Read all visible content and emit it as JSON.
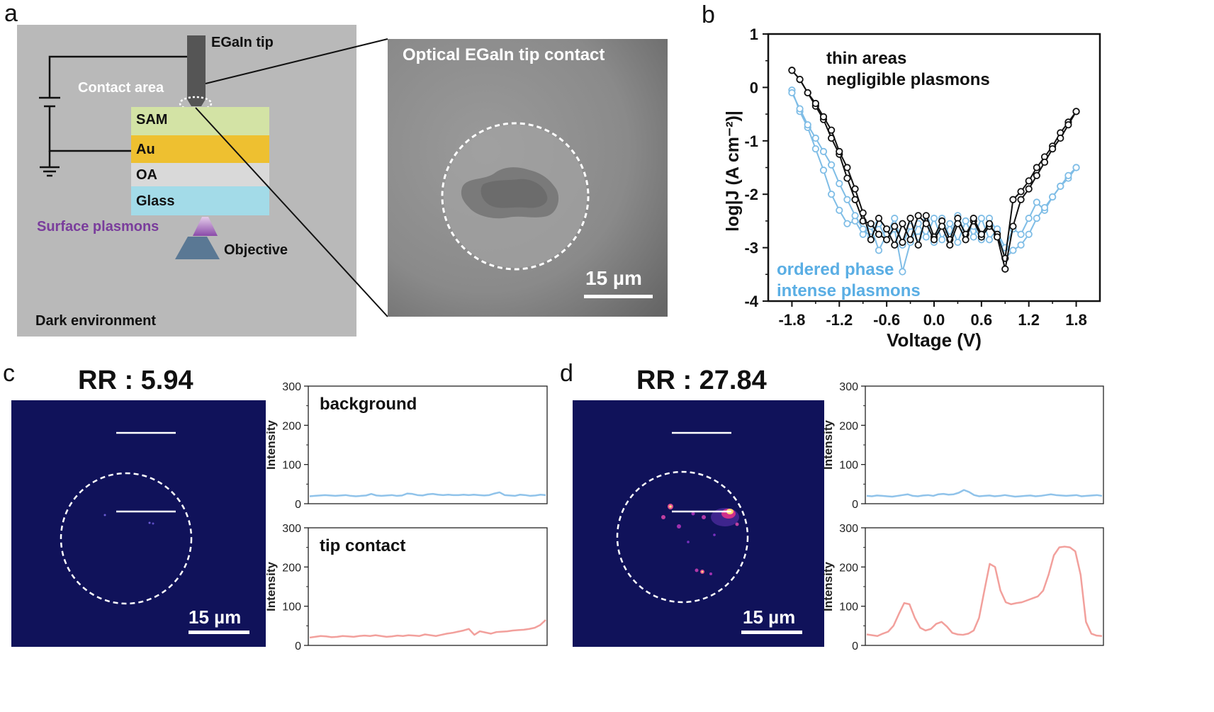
{
  "panel_labels": {
    "a": "a",
    "b": "b",
    "c": "c",
    "d": "d"
  },
  "schematic": {
    "tip_label": "EGaIn tip",
    "contact_label": "Contact area",
    "layers": [
      {
        "name": "SAM",
        "color": "#d3e3a5"
      },
      {
        "name": "Au",
        "color": "#eec030"
      },
      {
        "name": "OA",
        "color": "#d9d9d9"
      },
      {
        "name": "Glass",
        "color": "#a3dbe8"
      }
    ],
    "plasmon_label": "Surface plasmons",
    "objective_label": "Objective",
    "env_label": "Dark environment",
    "colors": {
      "bg": "#b9b9b9",
      "plasmon": "#7a3d9c",
      "tip": "#555555",
      "objective": "#5a7894"
    }
  },
  "optical": {
    "title": "Optical EGaIn tip contact",
    "scalebar": "15 µm"
  },
  "panel_c": {
    "rr": "RR : 5.94",
    "scalebar": "15 µm"
  },
  "panel_d": {
    "rr": "RR : 27.84",
    "scalebar": "15 µm"
  },
  "chart_data": [
    {
      "id": "b",
      "type": "line",
      "xlabel": "Voltage (V)",
      "ylabel": "log|J (A cm⁻²)|",
      "xlim": [
        -2.1,
        2.1
      ],
      "ylim": [
        -4,
        1
      ],
      "xticks": [
        "-1.8",
        "-1.2",
        "-0.6",
        "0.0",
        "0.6",
        "1.2",
        "1.8"
      ],
      "yticks": [
        "1",
        "0",
        "-1",
        "-2",
        "-3",
        "-4"
      ],
      "annotations": [
        {
          "text": "thin areas",
          "color": "#111111"
        },
        {
          "text": "negligible plasmons",
          "color": "#111111"
        },
        {
          "text": "ordered phase",
          "color": "#5aaee4"
        },
        {
          "text": "intense plasmons",
          "color": "#5aaee4"
        }
      ],
      "series": [
        {
          "color": "#111111",
          "sweeps": [
            {
              "x": [
                -1.8,
                -1.7,
                -1.6,
                -1.5,
                -1.4,
                -1.3,
                -1.2,
                -1.1,
                -1.0,
                -0.9,
                -0.8,
                -0.7,
                -0.6,
                -0.5,
                -0.4,
                -0.3,
                -0.2,
                -0.1,
                0.0,
                0.1,
                0.2,
                0.3,
                0.4,
                0.5,
                0.6,
                0.7,
                0.8,
                0.9,
                1.0,
                1.1,
                1.2,
                1.3,
                1.4,
                1.5,
                1.6,
                1.7,
                1.8
              ],
              "y": [
                0.32,
                0.15,
                -0.1,
                -0.35,
                -0.6,
                -0.95,
                -1.25,
                -1.7,
                -2.1,
                -2.5,
                -2.55,
                -2.75,
                -2.85,
                -2.6,
                -2.9,
                -2.45,
                -2.95,
                -2.4,
                -2.8,
                -2.5,
                -2.85,
                -2.45,
                -2.75,
                -2.5,
                -2.8,
                -2.6,
                -2.75,
                -3.2,
                -2.1,
                -1.95,
                -1.75,
                -1.5,
                -1.3,
                -1.1,
                -0.85,
                -0.65,
                -0.45
              ]
            },
            {
              "x": [
                1.8,
                1.7,
                1.6,
                1.5,
                1.4,
                1.3,
                1.2,
                1.1,
                1.0,
                0.9,
                0.8,
                0.7,
                0.6,
                0.5,
                0.4,
                0.3,
                0.2,
                0.1,
                0.0,
                -0.1,
                -0.2,
                -0.3,
                -0.4,
                -0.5,
                -0.6,
                -0.7,
                -0.8,
                -0.9,
                -1.0,
                -1.1,
                -1.2,
                -1.3,
                -1.4,
                -1.5,
                -1.6,
                -1.7,
                -1.8
              ],
              "y": [
                -0.45,
                -0.7,
                -0.95,
                -1.15,
                -1.4,
                -1.65,
                -1.9,
                -2.1,
                -2.6,
                -3.4,
                -2.8,
                -2.55,
                -2.75,
                -2.45,
                -2.85,
                -2.55,
                -2.95,
                -2.6,
                -2.85,
                -2.55,
                -2.4,
                -2.85,
                -2.55,
                -2.95,
                -2.65,
                -2.45,
                -2.85,
                -2.35,
                -1.9,
                -1.5,
                -1.2,
                -0.8,
                -0.55,
                -0.3,
                -0.1,
                0.15,
                0.32
              ]
            }
          ]
        },
        {
          "color": "#7fbde6",
          "sweeps": [
            {
              "x": [
                -1.8,
                -1.7,
                -1.6,
                -1.5,
                -1.4,
                -1.3,
                -1.2,
                -1.1,
                -1.0,
                -0.9,
                -0.8,
                -0.7,
                -0.6,
                -0.5,
                -0.4,
                -0.3,
                -0.2,
                -0.1,
                0.0,
                0.1,
                0.2,
                0.3,
                0.4,
                0.5,
                0.6,
                0.7,
                0.8,
                0.9,
                1.0,
                1.1,
                1.2,
                1.3,
                1.4,
                1.5,
                1.6,
                1.7,
                1.8
              ],
              "y": [
                -0.05,
                -0.45,
                -0.75,
                -1.15,
                -1.55,
                -2.0,
                -2.3,
                -2.55,
                -2.5,
                -2.75,
                -2.6,
                -3.05,
                -2.75,
                -2.45,
                -2.95,
                -2.6,
                -2.8,
                -2.5,
                -2.9,
                -2.45,
                -2.8,
                -2.4,
                -2.75,
                -2.6,
                -2.85,
                -2.45,
                -2.7,
                -3.0,
                -2.65,
                -2.75,
                -2.45,
                -2.15,
                -2.3,
                -2.05,
                -1.85,
                -1.7,
                -1.5
              ]
            },
            {
              "x": [
                1.8,
                1.7,
                1.6,
                1.5,
                1.4,
                1.3,
                1.2,
                1.1,
                1.0,
                0.9,
                0.8,
                0.7,
                0.6,
                0.5,
                0.4,
                0.3,
                0.2,
                0.1,
                0.0,
                -0.1,
                -0.2,
                -0.3,
                -0.4,
                -0.5,
                -0.6,
                -0.7,
                -0.8,
                -0.9,
                -1.0,
                -1.1,
                -1.2,
                -1.3,
                -1.4,
                -1.5,
                -1.6,
                -1.7,
                -1.8
              ],
              "y": [
                -1.5,
                -1.65,
                -1.85,
                -2.05,
                -2.25,
                -2.45,
                -2.75,
                -2.95,
                -3.05,
                -3.2,
                -2.65,
                -2.85,
                -2.45,
                -2.8,
                -2.5,
                -2.9,
                -2.55,
                -2.85,
                -2.45,
                -2.8,
                -2.55,
                -2.9,
                -3.45,
                -2.65,
                -2.85,
                -2.55,
                -2.8,
                -2.65,
                -2.4,
                -2.1,
                -1.8,
                -1.45,
                -1.2,
                -0.95,
                -0.7,
                -0.4,
                -0.1
              ]
            }
          ]
        }
      ]
    },
    {
      "id": "c-background",
      "type": "line",
      "annotation": "background",
      "ylabel": "Intensity",
      "ylim": [
        0,
        300
      ],
      "yticks": [
        "0",
        "100",
        "200",
        "300"
      ],
      "color": "#90c3ea",
      "values": [
        19,
        20,
        21,
        22,
        21,
        20,
        21,
        22,
        20,
        19,
        20,
        21,
        25,
        21,
        20,
        21,
        22,
        20,
        21,
        26,
        25,
        22,
        21,
        24,
        25,
        23,
        22,
        23,
        22,
        22,
        23,
        22,
        23,
        22,
        21,
        22,
        26,
        29,
        22,
        21,
        20,
        23,
        22,
        20,
        21,
        23,
        22
      ]
    },
    {
      "id": "c-tip",
      "type": "line",
      "annotation": "tip contact",
      "ylabel": "Intensity",
      "ylim": [
        0,
        300
      ],
      "yticks": [
        "0",
        "100",
        "200",
        "300"
      ],
      "color": "#f2a09c",
      "values": [
        20,
        22,
        24,
        23,
        21,
        22,
        24,
        23,
        22,
        24,
        25,
        24,
        26,
        24,
        22,
        23,
        25,
        24,
        26,
        25,
        24,
        28,
        26,
        24,
        27,
        30,
        32,
        35,
        38,
        42,
        27,
        36,
        33,
        30,
        34,
        35,
        36,
        38,
        39,
        40,
        42,
        45,
        52,
        65
      ]
    },
    {
      "id": "d-background",
      "type": "line",
      "annotation": "",
      "ylabel": "Intensity",
      "ylim": [
        0,
        300
      ],
      "yticks": [
        "0",
        "100",
        "200",
        "300"
      ],
      "color": "#90c3ea",
      "values": [
        20,
        19,
        21,
        20,
        19,
        18,
        20,
        22,
        24,
        20,
        19,
        21,
        22,
        20,
        24,
        25,
        23,
        24,
        28,
        35,
        30,
        22,
        19,
        20,
        21,
        19,
        20,
        22,
        20,
        18,
        19,
        20,
        21,
        19,
        20,
        22,
        24,
        22,
        21,
        20,
        21,
        22,
        19,
        20,
        21,
        22,
        20
      ]
    },
    {
      "id": "d-tip",
      "type": "line",
      "annotation": "",
      "ylabel": "Intensity",
      "ylim": [
        0,
        300
      ],
      "yticks": [
        "0",
        "100",
        "200",
        "300"
      ],
      "color": "#f2a09c",
      "values": [
        28,
        26,
        24,
        30,
        35,
        50,
        80,
        108,
        105,
        70,
        45,
        38,
        42,
        55,
        60,
        48,
        32,
        28,
        27,
        30,
        38,
        70,
        140,
        208,
        200,
        140,
        110,
        105,
        108,
        110,
        115,
        120,
        125,
        140,
        180,
        230,
        250,
        252,
        250,
        240,
        180,
        60,
        30,
        25,
        24
      ]
    }
  ]
}
